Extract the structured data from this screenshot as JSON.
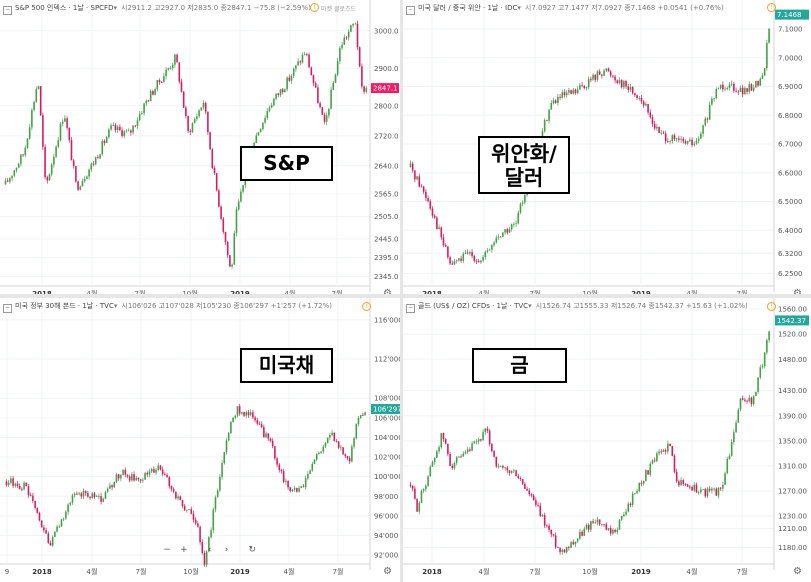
{
  "panels": {
    "sp": {
      "symbol": "S&P 500 인덱스 · 1날 · SPCFD",
      "ohlc": "시2911.2 고2927.0 저2835.0 종2847.1 −75.8 (−2.59%)",
      "badge_color": "#e91e63",
      "corner_text": "마켓 클로즈드",
      "callout": "S&P",
      "chart_data": {
        "type": "line",
        "title": "S&P 500 인덱스",
        "x": [
          "2017-12-01",
          "2018-01-02",
          "2018-01-26",
          "2018-02-08",
          "2018-03-12",
          "2018-04-02",
          "2018-05-01",
          "2018-06-01",
          "2018-07-02",
          "2018-08-01",
          "2018-09-20",
          "2018-10-11",
          "2018-11-07",
          "2018-11-23",
          "2018-12-24",
          "2019-01-02",
          "2019-02-01",
          "2019-03-01",
          "2019-04-01",
          "2019-05-01",
          "2019-06-03",
          "2019-07-01",
          "2019-07-26",
          "2019-08-05",
          "2019-08-14"
        ],
        "values": [
          2590,
          2675,
          2872,
          2580,
          2785,
          2582,
          2648,
          2740,
          2725,
          2815,
          2930,
          2728,
          2813,
          2632,
          2351,
          2510,
          2706,
          2803,
          2867,
          2945,
          2744,
          2964,
          3025,
          2844,
          2847
        ],
        "y_ticks": [
          "3000.0",
          "2900.0",
          "2800.0",
          "2720.0",
          "2640.0",
          "2565.0",
          "2505.0",
          "2445.0",
          "2395.0",
          "2345.0"
        ],
        "ylim": [
          2330,
          3050
        ],
        "x_ticks": [
          "2018",
          "4월",
          "7월",
          "10월",
          "2019",
          "4월",
          "7월"
        ],
        "last_label": "2847.1"
      }
    },
    "cny": {
      "symbol": "미국 달러 / 중국 위안 · 1날 · IDC",
      "ohlc": "시7.0927 고7.1477 저7.0927 종7.1468 +0.0541 (+0.76%)",
      "badge_color": "#26a69a",
      "callout": "위안화/\n달러",
      "chart_data": {
        "type": "line",
        "title": "미국 달러 / 중국 위안",
        "x": [
          "2017-12-01",
          "2018-01-02",
          "2018-02-08",
          "2018-03-15",
          "2018-04-02",
          "2018-05-01",
          "2018-06-01",
          "2018-06-29",
          "2018-07-31",
          "2018-08-15",
          "2018-09-12",
          "2018-10-31",
          "2018-12-03",
          "2019-01-02",
          "2019-02-01",
          "2019-03-01",
          "2019-04-10",
          "2019-05-15",
          "2019-06-03",
          "2019-07-01",
          "2019-08-01",
          "2019-08-14"
        ],
        "values": [
          6.62,
          6.5,
          6.28,
          6.32,
          6.29,
          6.38,
          6.42,
          6.63,
          6.84,
          6.86,
          6.88,
          6.96,
          6.91,
          6.86,
          6.74,
          6.71,
          6.7,
          6.9,
          6.91,
          6.88,
          6.93,
          7.15
        ],
        "y_ticks": [
          "7.1000",
          "7.0000",
          "6.9000",
          "6.8000",
          "6.7000",
          "6.6000",
          "6.5000",
          "6.4000",
          "6.3200",
          "6.2500"
        ],
        "ylim": [
          6.22,
          7.18
        ],
        "x_ticks": [
          "2018",
          "4월",
          "7월",
          "10월",
          "2019",
          "4월",
          "7월"
        ],
        "last_label": "7.1468"
      }
    },
    "tbond": {
      "symbol": "미국 정부 30해 본드 · 1날 · TVC",
      "ohlc": "시106'026 고107'028 저105'230 종106'297 +1'257 (+1.72%)",
      "badge_color": "#26a69a",
      "callout": "미국채",
      "chart_data": {
        "type": "line",
        "title": "미국 정부 30해 본드",
        "x": [
          "2017-12-01",
          "2018-01-02",
          "2018-02-15",
          "2018-03-20",
          "2018-04-12",
          "2018-05-15",
          "2018-06-15",
          "2018-07-15",
          "2018-08-20",
          "2018-09-20",
          "2018-10-25",
          "2018-11-08",
          "2018-12-03",
          "2018-12-20",
          "2019-01-02",
          "2019-01-30",
          "2019-02-28",
          "2019-03-29",
          "2019-04-20",
          "2019-05-20",
          "2019-06-15",
          "2019-07-15",
          "2019-08-01",
          "2019-08-14"
        ],
        "values": [
          99.5,
          99.0,
          93.0,
          97.5,
          98.5,
          97.5,
          100.5,
          99.5,
          101.0,
          98.0,
          95.5,
          91.0,
          100.0,
          105.0,
          107.0,
          106.0,
          103.5,
          99.0,
          98.5,
          102.0,
          104.5,
          101.5,
          106.5,
          106.9
        ],
        "y_ticks": [
          "116'000",
          "112'000",
          "108'000",
          "106'000",
          "104'000",
          "102'000",
          "100'000",
          "98'000",
          "96'000",
          "94'000",
          "92'000"
        ],
        "ylim": [
          91.5,
          117
        ],
        "x_ticks": [
          "9",
          "2018",
          "4월",
          "7월",
          "10월",
          "2019",
          "4월",
          "7월"
        ],
        "last_label": "106'297"
      }
    },
    "gold": {
      "symbol": "골드 (US$ / OZ) CFDs · 1날 · TVC",
      "ohlc": "시1526.74 고1555.33 저1526.74 종1542.37 +15.63 (+1.02%)",
      "badge_color": "#26a69a",
      "callout": "금",
      "chart_data": {
        "type": "line",
        "title": "골드 (US$ / OZ) CFDs",
        "x": [
          "2017-12-01",
          "2017-12-12",
          "2018-01-25",
          "2018-02-08",
          "2018-03-01",
          "2018-04-11",
          "2018-05-01",
          "2018-06-01",
          "2018-07-02",
          "2018-08-16",
          "2018-09-14",
          "2018-10-15",
          "2018-11-13",
          "2018-12-03",
          "2019-01-02",
          "2019-01-31",
          "2019-02-20",
          "2019-03-07",
          "2019-04-23",
          "2019-05-20",
          "2019-06-03",
          "2019-06-25",
          "2019-07-15",
          "2019-08-07",
          "2019-08-14"
        ],
        "values": [
          1280,
          1243,
          1361,
          1312,
          1322,
          1365,
          1305,
          1298,
          1252,
          1174,
          1194,
          1226,
          1199,
          1231,
          1285,
          1325,
          1345,
          1285,
          1268,
          1270,
          1325,
          1419,
          1412,
          1503,
          1542
        ],
        "y_ticks": [
          "1560.00",
          "1520.00",
          "1480.00",
          "1430.00",
          "1390.00",
          "1350.00",
          "1310.00",
          "1270.00",
          "1230.00",
          "1210.00",
          "1180.00"
        ],
        "ylim": [
          1160,
          1565
        ],
        "x_ticks": [
          "2018",
          "4월",
          "7월",
          "10월",
          "2019",
          "4월",
          "7월"
        ],
        "last_label": "1542.37"
      }
    }
  },
  "nav": {
    "zoom_out": "−",
    "zoom_in": "+",
    "left": "‹",
    "right": "›",
    "reset": "↻"
  },
  "gear_glyph": "⚙",
  "alert_glyph": "!"
}
